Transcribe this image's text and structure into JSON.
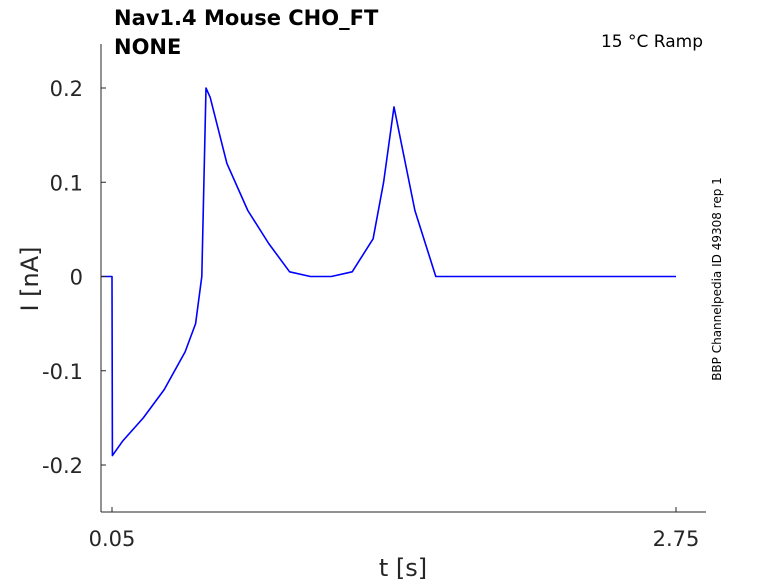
{
  "chart_data": {
    "type": "line",
    "title_line1": "Nav1.4  Mouse  CHO_FT",
    "title_line2": "NONE",
    "condition": "15 °C  Ramp",
    "side_label": "BBP Channelpedia ID 49308 rep 1",
    "xlabel": "t [s]",
    "ylabel": "I [nA]",
    "xticks": [
      "0.05",
      "2.75"
    ],
    "yticks": [
      "0.2",
      "0.1",
      "0",
      "-0.1",
      "-0.2"
    ],
    "ylim": [
      -0.25,
      0.25
    ],
    "grid": false,
    "series_color": "#0000ff",
    "series": [
      {
        "x": [
          0.0,
          0.03,
          0.05,
          0.052,
          0.1,
          0.2,
          0.3,
          0.4,
          0.45,
          0.48,
          0.5,
          0.52,
          0.6,
          0.7,
          0.8,
          0.9,
          1.0,
          1.1,
          1.2,
          1.3,
          1.35,
          1.4,
          1.5,
          1.6,
          1.62,
          1.65,
          1.7,
          1.8,
          1.9,
          2.0,
          2.05,
          2.1,
          2.2,
          2.3,
          2.4,
          2.5,
          2.6,
          2.62,
          2.66,
          2.68,
          2.7,
          2.75
        ],
        "values": [
          0.0,
          0.0,
          0.0,
          -0.19,
          -0.175,
          -0.15,
          -0.12,
          -0.08,
          -0.05,
          0.0,
          0.2,
          0.19,
          0.12,
          0.07,
          0.035,
          0.005,
          0.0,
          0.0,
          0.005,
          0.04,
          0.1,
          0.18,
          0.07,
          0.0,
          0.0,
          0.0,
          0.0,
          0.0,
          0.0,
          0.0,
          0.0,
          0.0,
          0.0,
          0.0,
          0.0,
          0.0,
          0.0,
          0.0,
          0.0,
          0.0,
          0.0,
          0.0
        ]
      }
    ]
  }
}
